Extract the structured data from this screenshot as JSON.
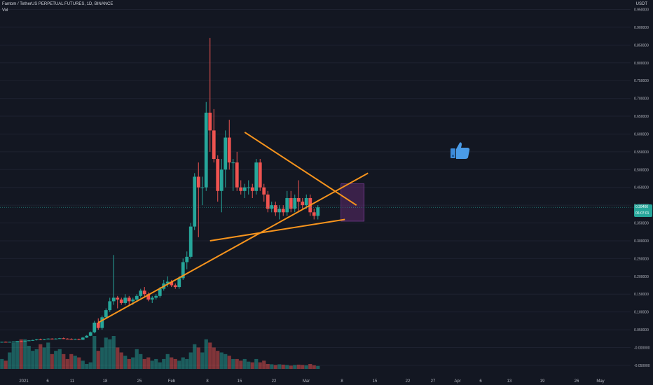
{
  "header": {
    "symbol_line": "Fantom / TetherUS PERPETUAL FUTURES, 1D, BINANCE",
    "indicator": "Vol"
  },
  "price_axis": {
    "currency": "USDT",
    "ticks": [
      "0.950000",
      "0.900000",
      "0.850000",
      "0.800000",
      "0.750000",
      "0.700000",
      "0.650000",
      "0.600000",
      "0.550000",
      "0.500000",
      "0.450000",
      "0.400000",
      "0.350000",
      "0.300000",
      "0.250000",
      "0.200000",
      "0.150000",
      "0.100000",
      "0.050000",
      "-0.000000",
      "-0.050000"
    ],
    "current_price_label": [
      "0.39400",
      "06:07:01"
    ]
  },
  "time_axis": {
    "labels": [
      "2021",
      "6",
      "11",
      "18",
      "25",
      "Feb",
      "8",
      "15",
      "22",
      "Mar",
      "8",
      "15",
      "22",
      "27",
      "Apr",
      "6",
      "13",
      "19",
      "26",
      "May"
    ]
  },
  "colors": {
    "background": "#131722",
    "up": "#26a69a",
    "down": "#ef5350",
    "trendline": "#f7941d",
    "target_box": "#6a2e7a",
    "price_line": "#26a69a"
  },
  "icons": {
    "thumbs_up": "thumbs-up-icon"
  },
  "chart_data": {
    "type": "candlestick",
    "symbol": "FTMUSDT",
    "interval": "1D",
    "price_range": [
      -0.06,
      0.95
    ],
    "bars": [
      {
        "o": 0.015,
        "h": 0.016,
        "l": 0.014,
        "c": 0.016
      },
      {
        "o": 0.016,
        "h": 0.017,
        "l": 0.015,
        "c": 0.015
      },
      {
        "o": 0.015,
        "h": 0.016,
        "l": 0.015,
        "c": 0.016
      },
      {
        "o": 0.016,
        "h": 0.017,
        "l": 0.016,
        "c": 0.017
      },
      {
        "o": 0.017,
        "h": 0.018,
        "l": 0.016,
        "c": 0.018
      },
      {
        "o": 0.018,
        "h": 0.019,
        "l": 0.017,
        "c": 0.017
      },
      {
        "o": 0.017,
        "h": 0.019,
        "l": 0.016,
        "c": 0.019
      },
      {
        "o": 0.019,
        "h": 0.021,
        "l": 0.018,
        "c": 0.02
      },
      {
        "o": 0.02,
        "h": 0.022,
        "l": 0.019,
        "c": 0.021
      },
      {
        "o": 0.021,
        "h": 0.024,
        "l": 0.02,
        "c": 0.023
      },
      {
        "o": 0.023,
        "h": 0.025,
        "l": 0.021,
        "c": 0.022
      },
      {
        "o": 0.022,
        "h": 0.024,
        "l": 0.021,
        "c": 0.024
      },
      {
        "o": 0.024,
        "h": 0.026,
        "l": 0.023,
        "c": 0.025
      },
      {
        "o": 0.025,
        "h": 0.026,
        "l": 0.023,
        "c": 0.024
      },
      {
        "o": 0.024,
        "h": 0.026,
        "l": 0.023,
        "c": 0.025
      },
      {
        "o": 0.025,
        "h": 0.027,
        "l": 0.024,
        "c": 0.026
      },
      {
        "o": 0.026,
        "h": 0.028,
        "l": 0.024,
        "c": 0.025
      },
      {
        "o": 0.025,
        "h": 0.026,
        "l": 0.023,
        "c": 0.024
      },
      {
        "o": 0.024,
        "h": 0.026,
        "l": 0.022,
        "c": 0.023
      },
      {
        "o": 0.023,
        "h": 0.025,
        "l": 0.022,
        "c": 0.024
      },
      {
        "o": 0.024,
        "h": 0.025,
        "l": 0.021,
        "c": 0.022
      },
      {
        "o": 0.022,
        "h": 0.03,
        "l": 0.021,
        "c": 0.028
      },
      {
        "o": 0.028,
        "h": 0.035,
        "l": 0.027,
        "c": 0.033
      },
      {
        "o": 0.033,
        "h": 0.045,
        "l": 0.032,
        "c": 0.043
      },
      {
        "o": 0.043,
        "h": 0.075,
        "l": 0.04,
        "c": 0.07
      },
      {
        "o": 0.07,
        "h": 0.082,
        "l": 0.05,
        "c": 0.055
      },
      {
        "o": 0.055,
        "h": 0.09,
        "l": 0.05,
        "c": 0.085
      },
      {
        "o": 0.085,
        "h": 0.11,
        "l": 0.08,
        "c": 0.105
      },
      {
        "o": 0.105,
        "h": 0.14,
        "l": 0.1,
        "c": 0.13
      },
      {
        "o": 0.13,
        "h": 0.26,
        "l": 0.12,
        "c": 0.14
      },
      {
        "o": 0.14,
        "h": 0.145,
        "l": 0.11,
        "c": 0.135
      },
      {
        "o": 0.135,
        "h": 0.14,
        "l": 0.12,
        "c": 0.125
      },
      {
        "o": 0.125,
        "h": 0.15,
        "l": 0.12,
        "c": 0.14
      },
      {
        "o": 0.14,
        "h": 0.145,
        "l": 0.12,
        "c": 0.13
      },
      {
        "o": 0.13,
        "h": 0.14,
        "l": 0.12,
        "c": 0.135
      },
      {
        "o": 0.135,
        "h": 0.15,
        "l": 0.13,
        "c": 0.145
      },
      {
        "o": 0.145,
        "h": 0.165,
        "l": 0.14,
        "c": 0.16
      },
      {
        "o": 0.16,
        "h": 0.17,
        "l": 0.14,
        "c": 0.15
      },
      {
        "o": 0.15,
        "h": 0.155,
        "l": 0.13,
        "c": 0.135
      },
      {
        "o": 0.135,
        "h": 0.145,
        "l": 0.125,
        "c": 0.14
      },
      {
        "o": 0.14,
        "h": 0.15,
        "l": 0.135,
        "c": 0.145
      },
      {
        "o": 0.145,
        "h": 0.17,
        "l": 0.14,
        "c": 0.165
      },
      {
        "o": 0.165,
        "h": 0.19,
        "l": 0.16,
        "c": 0.18
      },
      {
        "o": 0.18,
        "h": 0.2,
        "l": 0.17,
        "c": 0.185
      },
      {
        "o": 0.185,
        "h": 0.19,
        "l": 0.17,
        "c": 0.175
      },
      {
        "o": 0.175,
        "h": 0.18,
        "l": 0.165,
        "c": 0.17
      },
      {
        "o": 0.17,
        "h": 0.2,
        "l": 0.165,
        "c": 0.195
      },
      {
        "o": 0.195,
        "h": 0.25,
        "l": 0.19,
        "c": 0.24
      },
      {
        "o": 0.24,
        "h": 0.27,
        "l": 0.22,
        "c": 0.255
      },
      {
        "o": 0.255,
        "h": 0.35,
        "l": 0.25,
        "c": 0.34
      },
      {
        "o": 0.34,
        "h": 0.49,
        "l": 0.33,
        "c": 0.48
      },
      {
        "o": 0.48,
        "h": 0.52,
        "l": 0.31,
        "c": 0.45
      },
      {
        "o": 0.45,
        "h": 0.48,
        "l": 0.4,
        "c": 0.45
      },
      {
        "o": 0.45,
        "h": 0.69,
        "l": 0.44,
        "c": 0.66
      },
      {
        "o": 0.66,
        "h": 0.87,
        "l": 0.55,
        "c": 0.61
      },
      {
        "o": 0.61,
        "h": 0.67,
        "l": 0.52,
        "c": 0.53
      },
      {
        "o": 0.53,
        "h": 0.54,
        "l": 0.41,
        "c": 0.44
      },
      {
        "o": 0.44,
        "h": 0.53,
        "l": 0.38,
        "c": 0.5
      },
      {
        "o": 0.5,
        "h": 0.61,
        "l": 0.45,
        "c": 0.59
      },
      {
        "o": 0.59,
        "h": 0.64,
        "l": 0.5,
        "c": 0.52
      },
      {
        "o": 0.52,
        "h": 0.53,
        "l": 0.44,
        "c": 0.52
      },
      {
        "o": 0.52,
        "h": 0.55,
        "l": 0.44,
        "c": 0.45
      },
      {
        "o": 0.45,
        "h": 0.47,
        "l": 0.43,
        "c": 0.44
      },
      {
        "o": 0.44,
        "h": 0.46,
        "l": 0.42,
        "c": 0.45
      },
      {
        "o": 0.45,
        "h": 0.47,
        "l": 0.43,
        "c": 0.45
      },
      {
        "o": 0.45,
        "h": 0.46,
        "l": 0.42,
        "c": 0.44
      },
      {
        "o": 0.44,
        "h": 0.53,
        "l": 0.43,
        "c": 0.52
      },
      {
        "o": 0.52,
        "h": 0.53,
        "l": 0.44,
        "c": 0.45
      },
      {
        "o": 0.45,
        "h": 0.46,
        "l": 0.41,
        "c": 0.43
      },
      {
        "o": 0.43,
        "h": 0.44,
        "l": 0.38,
        "c": 0.39
      },
      {
        "o": 0.39,
        "h": 0.41,
        "l": 0.38,
        "c": 0.4
      },
      {
        "o": 0.4,
        "h": 0.41,
        "l": 0.37,
        "c": 0.38
      },
      {
        "o": 0.38,
        "h": 0.4,
        "l": 0.36,
        "c": 0.39
      },
      {
        "o": 0.39,
        "h": 0.4,
        "l": 0.37,
        "c": 0.38
      },
      {
        "o": 0.38,
        "h": 0.44,
        "l": 0.37,
        "c": 0.42
      },
      {
        "o": 0.42,
        "h": 0.44,
        "l": 0.38,
        "c": 0.39
      },
      {
        "o": 0.39,
        "h": 0.43,
        "l": 0.38,
        "c": 0.42
      },
      {
        "o": 0.42,
        "h": 0.47,
        "l": 0.38,
        "c": 0.41
      },
      {
        "o": 0.41,
        "h": 0.42,
        "l": 0.39,
        "c": 0.4
      },
      {
        "o": 0.4,
        "h": 0.43,
        "l": 0.39,
        "c": 0.42
      },
      {
        "o": 0.42,
        "h": 0.43,
        "l": 0.37,
        "c": 0.38
      },
      {
        "o": 0.38,
        "h": 0.39,
        "l": 0.36,
        "c": 0.37
      },
      {
        "o": 0.37,
        "h": 0.4,
        "l": 0.36,
        "c": 0.394
      }
    ],
    "volume_relative": [
      0.3,
      0.25,
      0.5,
      0.8,
      0.85,
      0.9,
      0.9,
      0.7,
      0.55,
      0.6,
      0.75,
      0.65,
      0.8,
      0.45,
      0.55,
      0.6,
      0.45,
      0.3,
      0.45,
      0.4,
      0.35,
      0.25,
      0.15,
      0.2,
      1.0,
      0.55,
      0.65,
      0.95,
      0.9,
      1.0,
      0.65,
      0.5,
      0.4,
      0.3,
      0.35,
      0.6,
      0.45,
      0.3,
      0.35,
      0.25,
      0.3,
      0.2,
      0.3,
      0.45,
      0.35,
      0.3,
      0.25,
      0.35,
      0.3,
      0.5,
      0.75,
      0.65,
      0.5,
      0.9,
      0.8,
      0.65,
      0.55,
      0.5,
      0.45,
      0.4,
      0.3,
      0.3,
      0.25,
      0.3,
      0.22,
      0.2,
      0.3,
      0.2,
      0.25,
      0.15,
      0.14,
      0.12,
      0.14,
      0.13,
      0.12,
      0.1,
      0.12,
      0.13,
      0.12,
      0.11,
      0.15,
      0.11,
      0.09
    ],
    "trendlines": [
      {
        "from": {
          "bar": 25,
          "price": 0.07
        },
        "to": {
          "bar": 95,
          "price": 0.49
        }
      },
      {
        "from": {
          "bar": 54,
          "price": 0.3
        },
        "to": {
          "bar": 89,
          "price": 0.36
        }
      },
      {
        "from": {
          "bar": 63,
          "price": 0.605
        },
        "to": {
          "bar": 92,
          "price": 0.4
        }
      }
    ],
    "target_zone": {
      "from_bar": 88,
      "to_bar": 94,
      "price_top": 0.46,
      "price_bottom": 0.355
    }
  }
}
